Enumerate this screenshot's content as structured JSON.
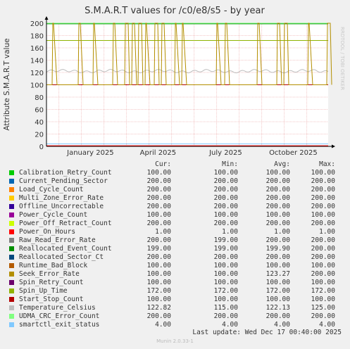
{
  "chart_data": {
    "type": "line",
    "title": "S.M.A.R.T values for /c0/e8/s5 - by year",
    "ylabel": "Attribute S.M.A.R.T value",
    "ylim": [
      0,
      200
    ],
    "y_ticks": [
      "0",
      "20",
      "40",
      "60",
      "80",
      "100",
      "120",
      "140",
      "160",
      "180",
      "200"
    ],
    "x_ticks": [
      "January 2025",
      "April 2025",
      "July 2025",
      "October 2025"
    ],
    "watermark": "RRDTOOL / TOBI OETIKER",
    "series": [
      {
        "name": "Calibration_Retry_Count",
        "color": "#00cc00",
        "cur": "100.00",
        "min": "100.00",
        "avg": "100.00",
        "max": "100.00"
      },
      {
        "name": "Current_Pending_Sector",
        "color": "#0066b3",
        "cur": "200.00",
        "min": "200.00",
        "avg": "200.00",
        "max": "200.00"
      },
      {
        "name": "Load_Cycle_Count",
        "color": "#ff8000",
        "cur": "200.00",
        "min": "200.00",
        "avg": "200.00",
        "max": "200.00"
      },
      {
        "name": "Multi_Zone_Error_Rate",
        "color": "#ffcc00",
        "cur": "200.00",
        "min": "200.00",
        "avg": "200.00",
        "max": "200.00"
      },
      {
        "name": "Offline_Uncorrectable",
        "color": "#330099",
        "cur": "200.00",
        "min": "200.00",
        "avg": "200.00",
        "max": "200.00"
      },
      {
        "name": "Power_Cycle_Count",
        "color": "#990099",
        "cur": "100.00",
        "min": "100.00",
        "avg": "100.00",
        "max": "100.00"
      },
      {
        "name": "Power_Off_Retract_Count",
        "color": "#ccff00",
        "cur": "200.00",
        "min": "200.00",
        "avg": "200.00",
        "max": "200.00"
      },
      {
        "name": "Power_On_Hours",
        "color": "#ff0000",
        "cur": "1.00",
        "min": "1.00",
        "avg": "1.00",
        "max": "1.00"
      },
      {
        "name": "Raw_Read_Error_Rate",
        "color": "#808080",
        "cur": "200.00",
        "min": "199.00",
        "avg": "200.00",
        "max": "200.00"
      },
      {
        "name": "Reallocated_Event_Count",
        "color": "#008f00",
        "cur": "199.00",
        "min": "199.00",
        "avg": "199.90",
        "max": "200.00"
      },
      {
        "name": "Reallocated_Sector_Ct",
        "color": "#00487d",
        "cur": "200.00",
        "min": "200.00",
        "avg": "200.00",
        "max": "200.00"
      },
      {
        "name": "Runtime_Bad_Block",
        "color": "#b35a00",
        "cur": "100.00",
        "min": "100.00",
        "avg": "100.00",
        "max": "100.00"
      },
      {
        "name": "Seek_Error_Rate",
        "color": "#b38f00",
        "cur": "100.00",
        "min": "100.00",
        "avg": "123.27",
        "max": "200.00"
      },
      {
        "name": "Spin_Retry_Count",
        "color": "#6b006b",
        "cur": "100.00",
        "min": "100.00",
        "avg": "100.00",
        "max": "100.00"
      },
      {
        "name": "Spin_Up_Time",
        "color": "#8fb300",
        "cur": "172.00",
        "min": "172.00",
        "avg": "172.00",
        "max": "172.00"
      },
      {
        "name": "Start_Stop_Count",
        "color": "#b30000",
        "cur": "100.00",
        "min": "100.00",
        "avg": "100.00",
        "max": "100.00"
      },
      {
        "name": "Temperature_Celsius",
        "color": "#bebebe",
        "cur": "122.82",
        "min": "115.00",
        "avg": "122.13",
        "max": "125.00"
      },
      {
        "name": "UDMA_CRC_Error_Count",
        "color": "#80ff80",
        "cur": "200.00",
        "min": "200.00",
        "avg": "200.00",
        "max": "200.00"
      },
      {
        "name": "smartctl_exit_status",
        "color": "#80c9ff",
        "cur": "4.00",
        "min": "4.00",
        "avg": "4.00",
        "max": "4.00"
      }
    ]
  },
  "legend": {
    "cur_header": "Cur:",
    "min_header": "Min:",
    "avg_header": "Avg:",
    "max_header": "Max:"
  },
  "last_update": "Last update:  Wed Dec 17 00:40:00 2025",
  "footer": "Munin 2.0.33-1"
}
